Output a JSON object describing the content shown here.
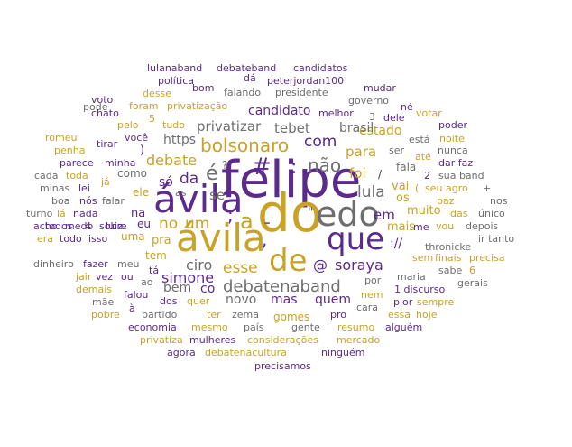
{
  "palette": {
    "purple": "#5b2a8c",
    "gold": "#c9a227",
    "gray": "#6e6e6e",
    "background": "#ffffff"
  },
  "words": [
    {
      "text": "felipe",
      "color": "purple"
    },
    {
      "text": "do",
      "color": "gold"
    },
    {
      "text": "ávila",
      "color": "purple"
    },
    {
      "text": "ávila",
      "color": "gold"
    },
    {
      "text": "edo",
      "color": "gray"
    },
    {
      "text": "que",
      "color": "purple"
    },
    {
      "text": "de",
      "color": "gold"
    },
    {
      "text": "#",
      "color": "purple"
    },
    {
      "text": "é",
      "color": "gray"
    },
    {
      "text": "a",
      "color": "gold"
    },
    {
      "text": "-",
      "color": "gray"
    },
    {
      "text": ";",
      "color": "purple"
    },
    {
      "text": ",",
      "color": "purple"
    },
    {
      "text": ":",
      "color": "purple"
    },
    {
      "text": "bolsonaro",
      "color": "gold"
    },
    {
      "text": "debatenaband",
      "color": "gray"
    },
    {
      "text": "não",
      "color": "gray"
    },
    {
      "text": "com",
      "color": "purple"
    },
    {
      "text": "um",
      "color": "gold"
    },
    {
      "text": "no",
      "color": "gold"
    },
    {
      "text": "da",
      "color": "purple"
    },
    {
      "text": "debate",
      "color": "gold"
    },
    {
      "text": "esse",
      "color": "gold"
    },
    {
      "text": "soraya",
      "color": "purple"
    },
    {
      "text": "@",
      "color": "purple"
    },
    {
      "text": "lula",
      "color": "gray"
    },
    {
      "text": "ciro",
      "color": "gray"
    },
    {
      "text": "simone",
      "color": "purple"
    },
    {
      "text": "para",
      "color": "gold"
    },
    {
      "text": "foi",
      "color": "gold"
    },
    {
      "text": "privatizar",
      "color": "gray"
    },
    {
      "text": "tebet",
      "color": "gray"
    },
    {
      "text": "candidato",
      "color": "purple"
    },
    {
      "text": "https",
      "color": "gray"
    },
    {
      "text": "estado",
      "color": "gold"
    },
    {
      "text": "brasil",
      "color": "gray"
    },
    {
      "text": "em",
      "color": "purple"
    },
    {
      "text": "mas",
      "color": "purple"
    },
    {
      "text": "quem",
      "color": "purple"
    },
    {
      "text": "novo",
      "color": "gray"
    },
    {
      "text": "co",
      "color": "purple"
    },
    {
      "text": "bem",
      "color": "gray"
    },
    {
      "text": "se",
      "color": "gray"
    },
    {
      "text": "só",
      "color": "purple"
    },
    {
      "text": "vai",
      "color": "gold"
    },
    {
      "text": "muito",
      "color": "gold"
    },
    {
      "text": "mais",
      "color": "gold"
    },
    {
      "text": "os",
      "color": "gold"
    },
    {
      "text": "://",
      "color": "purple"
    },
    {
      "text": "thronicke",
      "color": "gray"
    },
    {
      "text": "?",
      "color": "gray"
    },
    {
      "text": "/",
      "color": "purple"
    },
    {
      "text": "fala",
      "color": "gray"
    },
    {
      "text": "ele",
      "color": "gold"
    },
    {
      "text": "as",
      "color": "gray"
    },
    {
      "text": "como",
      "color": "gray"
    },
    {
      "text": "pra",
      "color": "gold"
    },
    {
      "text": "na",
      "color": "purple"
    },
    {
      "text": "uma",
      "color": "gold"
    },
    {
      "text": "tem",
      "color": "gold"
    },
    {
      "text": "eu",
      "color": "purple"
    },
    {
      "text": "lulanaband",
      "color": "purple"
    },
    {
      "text": "debateband",
      "color": "purple"
    },
    {
      "text": "candidatos",
      "color": "purple"
    },
    {
      "text": "política",
      "color": "purple"
    },
    {
      "text": "dá",
      "color": "purple"
    },
    {
      "text": "peterjordan100",
      "color": "purple"
    },
    {
      "text": "desse",
      "color": "gold"
    },
    {
      "text": "bom",
      "color": "purple"
    },
    {
      "text": "falando",
      "color": "gray"
    },
    {
      "text": "presidente",
      "color": "gray"
    },
    {
      "text": "mudar",
      "color": "purple"
    },
    {
      "text": "voto",
      "color": "purple"
    },
    {
      "text": "governo",
      "color": "gray"
    },
    {
      "text": "né",
      "color": "purple"
    },
    {
      "text": "pode",
      "color": "gray"
    },
    {
      "text": "foram",
      "color": "gold"
    },
    {
      "text": "privatização",
      "color": "gold"
    },
    {
      "text": "votar",
      "color": "gold"
    },
    {
      "text": "chato",
      "color": "purple"
    },
    {
      "text": "melhor",
      "color": "purple"
    },
    {
      "text": "3",
      "color": "gray"
    },
    {
      "text": "dele",
      "color": "purple"
    },
    {
      "text": "pelo",
      "color": "gold"
    },
    {
      "text": "tudo",
      "color": "gold"
    },
    {
      "text": "5",
      "color": "gold"
    },
    {
      "text": "poder",
      "color": "purple"
    },
    {
      "text": "romeu",
      "color": "gold"
    },
    {
      "text": "você",
      "color": "purple"
    },
    {
      "text": "tirar",
      "color": "purple"
    },
    {
      "text": "ser",
      "color": "gray"
    },
    {
      "text": "nunca",
      "color": "gray"
    },
    {
      "text": "noite",
      "color": "gold"
    },
    {
      "text": "penha",
      "color": "gold"
    },
    {
      "text": "está",
      "color": "gray"
    },
    {
      "text": "dar faz",
      "color": "purple"
    },
    {
      "text": "parece",
      "color": "purple"
    },
    {
      "text": "minha",
      "color": "purple"
    },
    {
      "text": "cada",
      "color": "gray"
    },
    {
      "text": "toda",
      "color": "gold"
    },
    {
      "text": "até",
      "color": "gold"
    },
    {
      "text": "sua band",
      "color": "gray"
    },
    {
      "text": "2",
      "color": "purple"
    },
    {
      "text": "já",
      "color": "gold"
    },
    {
      "text": "lei",
      "color": "purple"
    },
    {
      "text": "minas",
      "color": "gray"
    },
    {
      "text": "seu agro",
      "color": "gold"
    },
    {
      "text": "+",
      "color": "gray"
    },
    {
      "text": "boa",
      "color": "gray"
    },
    {
      "text": "nós",
      "color": "purple"
    },
    {
      "text": "falar",
      "color": "gray"
    },
    {
      "text": "paz",
      "color": "gold"
    },
    {
      "text": "nos",
      "color": "gray"
    },
    {
      "text": "turno",
      "color": "gray"
    },
    {
      "text": "lá",
      "color": "gold"
    },
    {
      "text": "nada",
      "color": "purple"
    },
    {
      "text": "das",
      "color": "gold"
    },
    {
      "text": "único",
      "color": "gray"
    },
    {
      "text": "acho",
      "color": "purple"
    },
    {
      "text": "medo",
      "color": "purple"
    },
    {
      "text": "luiz",
      "color": "purple"
    },
    {
      "text": "vou",
      "color": "gold"
    },
    {
      "text": "depois",
      "color": "gray"
    },
    {
      "text": "todos",
      "color": "purple"
    },
    {
      "text": "4",
      "color": "purple"
    },
    {
      "text": "sobre",
      "color": "purple"
    },
    {
      "text": "me",
      "color": "purple"
    },
    {
      "text": "era",
      "color": "gold"
    },
    {
      "text": "todo",
      "color": "purple"
    },
    {
      "text": "isso",
      "color": "purple"
    },
    {
      "text": "ir tanto",
      "color": "gray"
    },
    {
      "text": "dinheiro",
      "color": "gray"
    },
    {
      "text": "fazer",
      "color": "purple"
    },
    {
      "text": "meu",
      "color": "gray"
    },
    {
      "text": "sem",
      "color": "gold"
    },
    {
      "text": "finais",
      "color": "gold"
    },
    {
      "text": "precisa",
      "color": "gold"
    },
    {
      "text": "tá",
      "color": "purple"
    },
    {
      "text": "maria",
      "color": "gray"
    },
    {
      "text": "sabe",
      "color": "gray"
    },
    {
      "text": "6",
      "color": "gold"
    },
    {
      "text": "jair",
      "color": "gold"
    },
    {
      "text": "vez",
      "color": "purple"
    },
    {
      "text": "ou",
      "color": "purple"
    },
    {
      "text": "ao",
      "color": "gray"
    },
    {
      "text": "por",
      "color": "gray"
    },
    {
      "text": "gerais",
      "color": "gray"
    },
    {
      "text": "demais",
      "color": "gold"
    },
    {
      "text": "falou",
      "color": "purple"
    },
    {
      "text": "1 discurso",
      "color": "purple"
    },
    {
      "text": "nem",
      "color": "gold"
    },
    {
      "text": "mãe",
      "color": "gray"
    },
    {
      "text": "dos",
      "color": "purple"
    },
    {
      "text": "quer",
      "color": "gold"
    },
    {
      "text": "pior",
      "color": "purple"
    },
    {
      "text": "sempre",
      "color": "gold"
    },
    {
      "text": "cara",
      "color": "gray"
    },
    {
      "text": "pobre",
      "color": "gold"
    },
    {
      "text": "à",
      "color": "purple"
    },
    {
      "text": "partido",
      "color": "gray"
    },
    {
      "text": "ter",
      "color": "gold"
    },
    {
      "text": "zema",
      "color": "gray"
    },
    {
      "text": "gomes",
      "color": "gold"
    },
    {
      "text": "pro",
      "color": "purple"
    },
    {
      "text": "essa",
      "color": "gold"
    },
    {
      "text": "hoje",
      "color": "gold"
    },
    {
      "text": "economia",
      "color": "purple"
    },
    {
      "text": "mesmo",
      "color": "gold"
    },
    {
      "text": "país",
      "color": "gray"
    },
    {
      "text": "gente",
      "color": "gray"
    },
    {
      "text": "resumo",
      "color": "gold"
    },
    {
      "text": "alguém",
      "color": "purple"
    },
    {
      "text": "privatiza",
      "color": "gold"
    },
    {
      "text": "mulheres",
      "color": "purple"
    },
    {
      "text": "considerações",
      "color": "gold"
    },
    {
      "text": "mercado",
      "color": "gold"
    },
    {
      "text": "agora",
      "color": "purple"
    },
    {
      "text": "debatenacultura",
      "color": "gold"
    },
    {
      "text": "ninguém",
      "color": "purple"
    },
    {
      "text": "precisamos",
      "color": "purple"
    },
    {
      "text": "\"",
      "color": "gray"
    },
    {
      "text": "(",
      "color": "gold"
    },
    {
      "text": ")",
      "color": "purple"
    }
  ]
}
